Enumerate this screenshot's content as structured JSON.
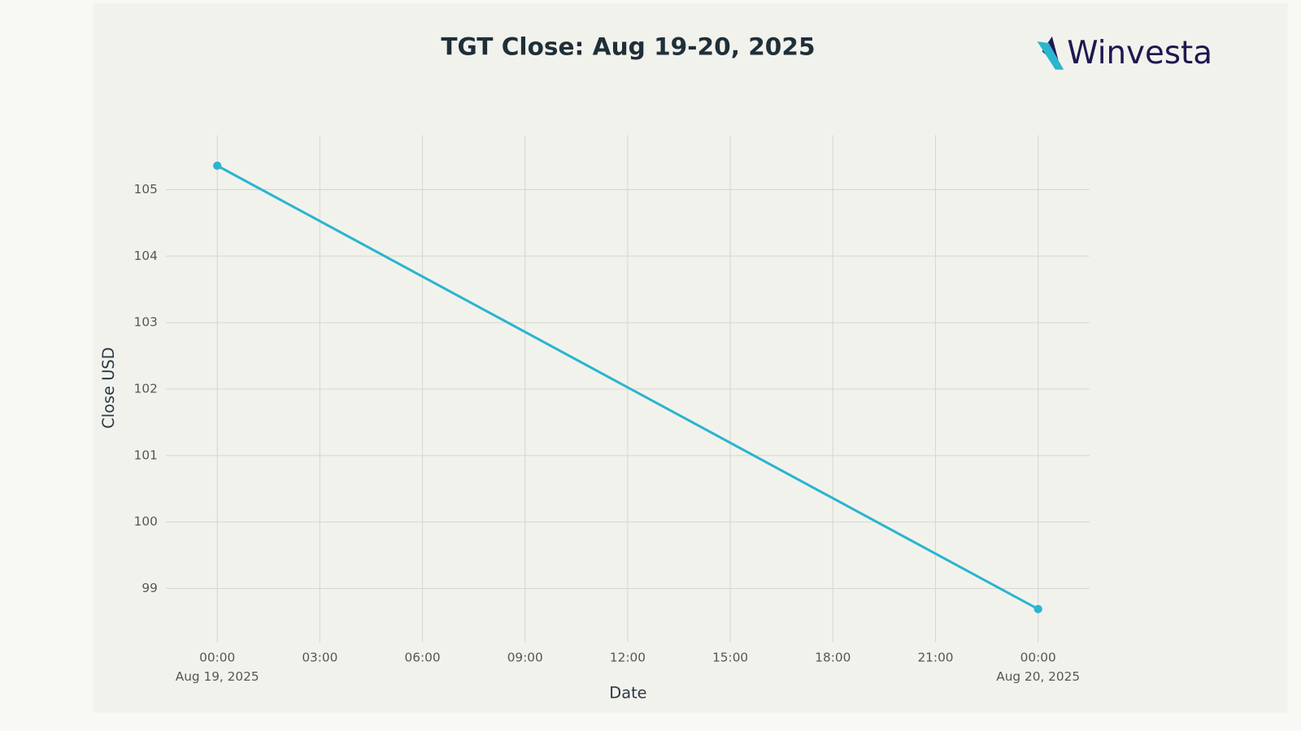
{
  "chart_data": {
    "type": "line",
    "title": "TGT Close: Aug 19-20, 2025",
    "logo": "Winvesta",
    "x_label": "Date",
    "y_label": "Close USD",
    "x": [
      "2025-08-19T00:00",
      "2025-08-20T00:00"
    ],
    "series": [
      {
        "name": "TGT",
        "color": "#2bb5cf",
        "values": [
          105.36,
          98.69
        ]
      }
    ],
    "xlim": [
      "2025-08-18T22:30",
      "2025-08-20T01:30"
    ],
    "xticks": [
      {
        "value": "2025-08-19T00:00",
        "label": "00:00",
        "date": "Aug 19, 2025"
      },
      {
        "value": "2025-08-19T03:00",
        "label": "03:00"
      },
      {
        "value": "2025-08-19T06:00",
        "label": "06:00"
      },
      {
        "value": "2025-08-19T09:00",
        "label": "09:00"
      },
      {
        "value": "2025-08-19T12:00",
        "label": "12:00"
      },
      {
        "value": "2025-08-19T15:00",
        "label": "15:00"
      },
      {
        "value": "2025-08-19T18:00",
        "label": "18:00"
      },
      {
        "value": "2025-08-19T21:00",
        "label": "21:00"
      },
      {
        "value": "2025-08-20T00:00",
        "label": "00:00",
        "date": "Aug 20, 2025"
      }
    ],
    "ylim": [
      98.19,
      105.82
    ],
    "yticks": [
      99,
      100,
      101,
      102,
      103,
      104,
      105
    ],
    "grid": true
  }
}
